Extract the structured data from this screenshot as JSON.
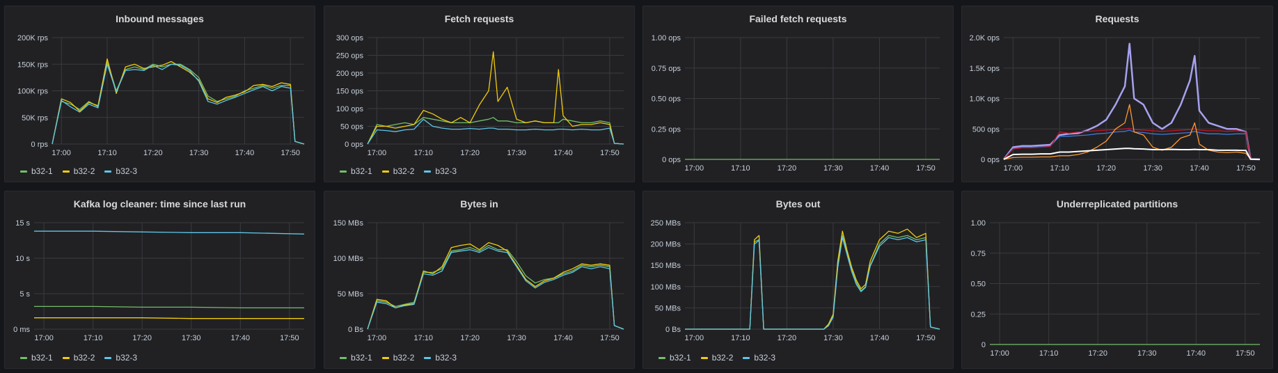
{
  "colors": {
    "b32-1": "#73bf69",
    "b32-2": "#f2cc0c",
    "b32-3": "#5ec6e8",
    "grid": "#3a3b3f",
    "req_purple": "#a6a2ee",
    "req_blue": "#3f7ad6",
    "req_red": "#c4162a",
    "req_white": "#ffffff",
    "req_orange": "#ff9830"
  },
  "x_ticks": [
    "17:00",
    "17:10",
    "17:20",
    "17:30",
    "17:40",
    "17:50"
  ],
  "legend": [
    "b32-1",
    "b32-2",
    "b32-3"
  ],
  "chart_data": [
    {
      "id": "inbound",
      "title": "Inbound messages",
      "type": "line",
      "y_ticks": [
        "200K rps",
        "150K rps",
        "100K rps",
        "50K rps",
        "0 rps"
      ],
      "ylim": [
        0,
        200000
      ],
      "x": [
        "16:58",
        "17:00",
        "17:02",
        "17:04",
        "17:06",
        "17:08",
        "17:10",
        "17:12",
        "17:14",
        "17:16",
        "17:18",
        "17:20",
        "17:22",
        "17:24",
        "17:26",
        "17:28",
        "17:30",
        "17:32",
        "17:34",
        "17:36",
        "17:38",
        "17:40",
        "17:42",
        "17:44",
        "17:46",
        "17:48",
        "17:50",
        "17:51",
        "17:53"
      ],
      "series": [
        {
          "name": "b32-1",
          "values": [
            0,
            80000,
            75000,
            65000,
            80000,
            70000,
            155000,
            100000,
            140000,
            145000,
            140000,
            150000,
            145000,
            150000,
            150000,
            140000,
            125000,
            90000,
            80000,
            85000,
            90000,
            100000,
            105000,
            110000,
            105000,
            110000,
            110000,
            5000,
            0
          ]
        },
        {
          "name": "b32-2",
          "values": [
            0,
            85000,
            78000,
            62000,
            78000,
            72000,
            160000,
            95000,
            145000,
            150000,
            142000,
            145000,
            148000,
            155000,
            145000,
            135000,
            120000,
            85000,
            78000,
            88000,
            92000,
            98000,
            110000,
            112000,
            108000,
            115000,
            112000,
            5000,
            0
          ]
        },
        {
          "name": "b32-3",
          "values": [
            0,
            82000,
            70000,
            60000,
            75000,
            68000,
            150000,
            98000,
            138000,
            140000,
            138000,
            148000,
            140000,
            150000,
            148000,
            138000,
            118000,
            80000,
            75000,
            82000,
            88000,
            95000,
            102000,
            108000,
            100000,
            108000,
            105000,
            5000,
            0
          ]
        }
      ]
    },
    {
      "id": "fetch",
      "title": "Fetch requests",
      "type": "line",
      "y_ticks": [
        "300 ops",
        "250 ops",
        "200 ops",
        "150 ops",
        "100 ops",
        "50 ops",
        "0 ops"
      ],
      "ylim": [
        0,
        300
      ],
      "x": [
        "16:58",
        "17:00",
        "17:02",
        "17:04",
        "17:06",
        "17:08",
        "17:10",
        "17:12",
        "17:14",
        "17:16",
        "17:18",
        "17:20",
        "17:22",
        "17:24",
        "17:25",
        "17:26",
        "17:28",
        "17:30",
        "17:32",
        "17:34",
        "17:36",
        "17:38",
        "17:39",
        "17:40",
        "17:42",
        "17:44",
        "17:46",
        "17:48",
        "17:50",
        "17:51",
        "17:53"
      ],
      "series": [
        {
          "name": "b32-1",
          "values": [
            0,
            55,
            50,
            55,
            60,
            55,
            75,
            70,
            65,
            60,
            60,
            60,
            65,
            70,
            75,
            65,
            65,
            60,
            60,
            65,
            60,
            60,
            60,
            70,
            65,
            60,
            60,
            65,
            60,
            2,
            0
          ]
        },
        {
          "name": "b32-2",
          "values": [
            0,
            50,
            50,
            45,
            50,
            55,
            95,
            85,
            70,
            60,
            75,
            60,
            110,
            150,
            260,
            120,
            160,
            70,
            60,
            65,
            60,
            60,
            210,
            80,
            50,
            55,
            55,
            60,
            55,
            2,
            0
          ]
        },
        {
          "name": "b32-3",
          "values": [
            0,
            40,
            38,
            35,
            40,
            42,
            70,
            50,
            45,
            42,
            42,
            44,
            42,
            45,
            45,
            42,
            42,
            40,
            40,
            42,
            40,
            40,
            42,
            42,
            40,
            42,
            40,
            40,
            45,
            2,
            0
          ]
        }
      ]
    },
    {
      "id": "failed",
      "title": "Failed fetch requests",
      "type": "line",
      "y_ticks": [
        "1.00 ops",
        "0.75 ops",
        "0.50 ops",
        "0.25 ops",
        "0 ops"
      ],
      "ylim": [
        0,
        1
      ],
      "x": [
        "16:58",
        "17:53"
      ],
      "series": [
        {
          "name": "b32-1",
          "values": [
            0,
            0
          ]
        }
      ]
    },
    {
      "id": "requests",
      "title": "Requests",
      "type": "line",
      "y_ticks": [
        "2.0K ops",
        "1.5K ops",
        "1.0K ops",
        "500 ops",
        "0 ops"
      ],
      "ylim": [
        0,
        2000
      ],
      "x": [
        "16:58",
        "17:00",
        "17:02",
        "17:04",
        "17:06",
        "17:08",
        "17:10",
        "17:12",
        "17:14",
        "17:16",
        "17:18",
        "17:20",
        "17:22",
        "17:24",
        "17:25",
        "17:26",
        "17:28",
        "17:30",
        "17:32",
        "17:34",
        "17:36",
        "17:38",
        "17:39",
        "17:40",
        "17:42",
        "17:44",
        "17:46",
        "17:48",
        "17:50",
        "17:51",
        "17:53"
      ],
      "series": [
        {
          "name": "",
          "color_key": "req_purple",
          "values": [
            0,
            200,
            220,
            220,
            230,
            240,
            400,
            420,
            430,
            480,
            550,
            650,
            900,
            1200,
            1900,
            1000,
            900,
            600,
            500,
            600,
            900,
            1300,
            1700,
            800,
            600,
            550,
            500,
            500,
            450,
            5,
            0
          ]
        },
        {
          "name": "",
          "color_key": "req_blue",
          "values": [
            0,
            180,
            200,
            200,
            210,
            220,
            380,
            380,
            390,
            400,
            420,
            430,
            450,
            460,
            480,
            450,
            440,
            420,
            410,
            420,
            430,
            440,
            460,
            440,
            420,
            420,
            410,
            420,
            420,
            5,
            0
          ]
        },
        {
          "name": "",
          "color_key": "req_red",
          "values": [
            0,
            170,
            190,
            190,
            200,
            210,
            450,
            430,
            450,
            460,
            470,
            480,
            490,
            500,
            510,
            490,
            480,
            470,
            460,
            470,
            480,
            490,
            500,
            480,
            470,
            470,
            460,
            470,
            450,
            5,
            0
          ]
        },
        {
          "name": "",
          "color_key": "req_orange",
          "values": [
            0,
            30,
            35,
            35,
            40,
            40,
            60,
            60,
            80,
            120,
            200,
            300,
            500,
            600,
            900,
            450,
            400,
            200,
            150,
            200,
            350,
            400,
            600,
            250,
            150,
            120,
            110,
            120,
            100,
            2,
            0
          ]
        },
        {
          "name": "",
          "color_key": "req_white",
          "values": [
            0,
            80,
            85,
            85,
            90,
            90,
            120,
            120,
            130,
            140,
            150,
            160,
            170,
            180,
            180,
            175,
            170,
            160,
            160,
            165,
            160,
            160,
            165,
            160,
            160,
            150,
            150,
            150,
            145,
            2,
            0
          ]
        }
      ]
    },
    {
      "id": "logcleaner",
      "title": "Kafka log cleaner: time since last run",
      "type": "line",
      "y_ticks": [
        "15 s",
        "10 s",
        "5 s",
        "0 ms"
      ],
      "ylim": [
        0,
        15
      ],
      "y_tick_values": [
        15,
        10,
        5,
        0
      ],
      "x": [
        "16:58",
        "17:10",
        "17:20",
        "17:30",
        "17:40",
        "17:53"
      ],
      "series": [
        {
          "name": "b32-1",
          "values": [
            3.2,
            3.2,
            3.1,
            3.1,
            3.0,
            3.0
          ]
        },
        {
          "name": "b32-2",
          "values": [
            1.6,
            1.6,
            1.6,
            1.5,
            1.5,
            1.5
          ]
        },
        {
          "name": "b32-3",
          "values": [
            13.8,
            13.8,
            13.7,
            13.6,
            13.6,
            13.4
          ]
        }
      ]
    },
    {
      "id": "bytesin",
      "title": "Bytes in",
      "type": "line",
      "y_ticks": [
        "150 MBs",
        "100 MBs",
        "50 MBs",
        "0 Bs"
      ],
      "ylim": [
        0,
        150
      ],
      "x": [
        "16:58",
        "17:00",
        "17:02",
        "17:04",
        "17:06",
        "17:08",
        "17:10",
        "17:12",
        "17:14",
        "17:16",
        "17:18",
        "17:20",
        "17:22",
        "17:24",
        "17:26",
        "17:28",
        "17:30",
        "17:32",
        "17:34",
        "17:36",
        "17:38",
        "17:40",
        "17:42",
        "17:44",
        "17:46",
        "17:48",
        "17:50",
        "17:51",
        "17:53"
      ],
      "series": [
        {
          "name": "b32-1",
          "values": [
            0,
            40,
            38,
            32,
            35,
            38,
            80,
            80,
            85,
            110,
            112,
            115,
            110,
            118,
            112,
            112,
            95,
            75,
            65,
            70,
            72,
            78,
            82,
            90,
            88,
            90,
            88,
            5,
            0
          ]
        },
        {
          "name": "b32-2",
          "values": [
            0,
            42,
            40,
            30,
            34,
            36,
            82,
            78,
            88,
            115,
            118,
            120,
            112,
            122,
            118,
            110,
            90,
            70,
            60,
            68,
            72,
            80,
            85,
            92,
            90,
            92,
            90,
            5,
            0
          ]
        },
        {
          "name": "b32-3",
          "values": [
            0,
            38,
            36,
            30,
            33,
            35,
            78,
            76,
            82,
            108,
            110,
            112,
            108,
            115,
            110,
            108,
            88,
            68,
            58,
            66,
            70,
            76,
            80,
            88,
            85,
            88,
            85,
            5,
            0
          ]
        }
      ]
    },
    {
      "id": "bytesout",
      "title": "Bytes out",
      "type": "line",
      "y_ticks": [
        "250 MBs",
        "200 MBs",
        "150 MBs",
        "100 MBs",
        "50 MBs",
        "0 Bs"
      ],
      "ylim": [
        0,
        250
      ],
      "x": [
        "16:58",
        "17:12",
        "17:13",
        "17:14",
        "17:15",
        "17:16",
        "17:28",
        "17:29",
        "17:30",
        "17:31",
        "17:32",
        "17:33",
        "17:34",
        "17:35",
        "17:36",
        "17:37",
        "17:38",
        "17:40",
        "17:42",
        "17:44",
        "17:46",
        "17:48",
        "17:50",
        "17:51",
        "17:53"
      ],
      "series": [
        {
          "name": "b32-1",
          "values": [
            0,
            0,
            205,
            210,
            0,
            0,
            0,
            10,
            30,
            150,
            220,
            180,
            140,
            110,
            90,
            100,
            150,
            200,
            220,
            215,
            220,
            210,
            215,
            5,
            0
          ]
        },
        {
          "name": "b32-2",
          "values": [
            0,
            0,
            210,
            220,
            0,
            0,
            0,
            12,
            35,
            160,
            230,
            185,
            145,
            115,
            95,
            105,
            160,
            210,
            230,
            225,
            235,
            215,
            225,
            5,
            0
          ]
        },
        {
          "name": "b32-3",
          "values": [
            0,
            0,
            200,
            208,
            0,
            0,
            0,
            8,
            28,
            145,
            215,
            175,
            135,
            105,
            88,
            98,
            148,
            195,
            215,
            210,
            215,
            205,
            210,
            5,
            0
          ]
        }
      ]
    },
    {
      "id": "underrep",
      "title": "Underreplicated partitions",
      "type": "line",
      "y_ticks": [
        "1.00",
        "0.75",
        "0.50",
        "0.25",
        "0"
      ],
      "ylim": [
        0,
        1
      ],
      "x": [
        "16:58",
        "17:53"
      ],
      "series": [
        {
          "name": "b32-1",
          "values": [
            0,
            0
          ]
        }
      ]
    }
  ]
}
